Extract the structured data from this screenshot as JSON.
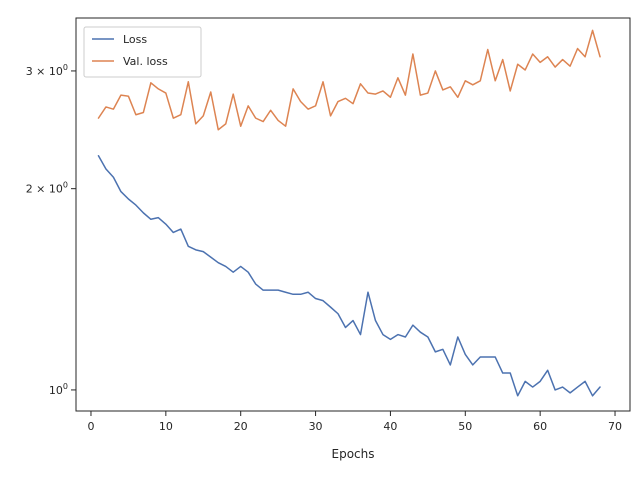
{
  "chart_data": {
    "type": "line",
    "xlabel": "Epochs",
    "ylabel": "",
    "xlim": [
      -2,
      72
    ],
    "ylim": [
      0.93,
      3.6
    ],
    "yscale": "log",
    "grid": false,
    "legend_position": "top-left",
    "x_ticks": [
      0,
      10,
      20,
      30,
      40,
      50,
      60,
      70
    ],
    "y_ticks": [
      {
        "value": 1,
        "label": "10⁰",
        "mantissa": "",
        "base": "10",
        "exp": "0"
      },
      {
        "value": 2,
        "label": "2 × 10⁰",
        "mantissa": "2 × ",
        "base": "10",
        "exp": "0"
      },
      {
        "value": 3,
        "label": "3 × 10⁰",
        "mantissa": "3 × ",
        "base": "10",
        "exp": "0"
      }
    ],
    "x": [
      1,
      2,
      3,
      4,
      5,
      6,
      7,
      8,
      9,
      10,
      11,
      12,
      13,
      14,
      15,
      16,
      17,
      18,
      19,
      20,
      21,
      22,
      23,
      24,
      25,
      26,
      27,
      28,
      29,
      30,
      31,
      32,
      33,
      34,
      35,
      36,
      37,
      38,
      39,
      40,
      41,
      42,
      43,
      44,
      45,
      46,
      47,
      48,
      49,
      50,
      51,
      52,
      53,
      54,
      55,
      56,
      57,
      58,
      59,
      60,
      61,
      62,
      63,
      64,
      65,
      66,
      67,
      68
    ],
    "series": [
      {
        "name": "Loss",
        "color": "#4c72b0",
        "values": [
          2.24,
          2.14,
          2.08,
          1.98,
          1.93,
          1.89,
          1.84,
          1.8,
          1.81,
          1.77,
          1.72,
          1.74,
          1.64,
          1.62,
          1.61,
          1.58,
          1.55,
          1.53,
          1.5,
          1.53,
          1.5,
          1.44,
          1.41,
          1.41,
          1.41,
          1.4,
          1.39,
          1.39,
          1.4,
          1.37,
          1.36,
          1.33,
          1.3,
          1.24,
          1.27,
          1.21,
          1.4,
          1.27,
          1.21,
          1.19,
          1.21,
          1.2,
          1.25,
          1.22,
          1.2,
          1.14,
          1.15,
          1.09,
          1.2,
          1.13,
          1.09,
          1.12,
          1.12,
          1.12,
          1.06,
          1.06,
          0.98,
          1.03,
          1.01,
          1.03,
          1.07,
          1.0,
          1.01,
          0.99,
          1.01,
          1.03,
          0.98,
          1.01
        ]
      },
      {
        "name": "Val. loss",
        "color": "#dd8452",
        "values": [
          2.55,
          2.65,
          2.63,
          2.76,
          2.75,
          2.58,
          2.6,
          2.88,
          2.82,
          2.78,
          2.55,
          2.58,
          2.89,
          2.5,
          2.57,
          2.79,
          2.45,
          2.5,
          2.77,
          2.48,
          2.66,
          2.55,
          2.52,
          2.62,
          2.53,
          2.48,
          2.82,
          2.7,
          2.63,
          2.66,
          2.89,
          2.57,
          2.7,
          2.73,
          2.68,
          2.87,
          2.78,
          2.77,
          2.8,
          2.74,
          2.93,
          2.76,
          3.18,
          2.76,
          2.78,
          3.0,
          2.81,
          2.84,
          2.74,
          2.9,
          2.86,
          2.9,
          3.23,
          2.9,
          3.12,
          2.8,
          3.07,
          3.01,
          3.18,
          3.09,
          3.15,
          3.04,
          3.12,
          3.05,
          3.24,
          3.15,
          3.45,
          3.15
        ]
      }
    ]
  }
}
